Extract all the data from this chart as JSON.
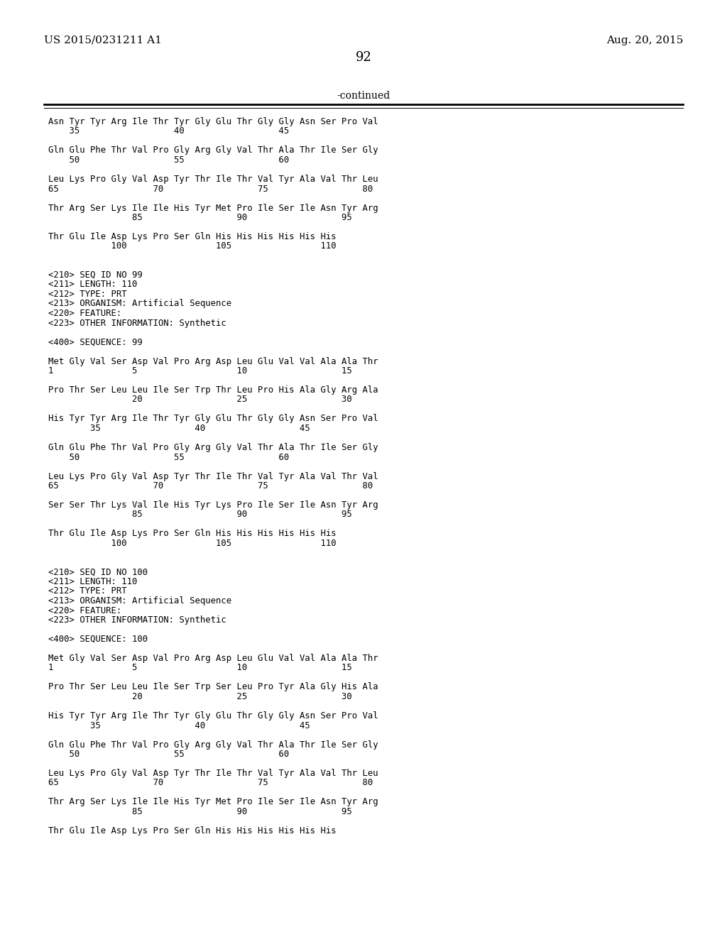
{
  "left_header": "US 2015/0231211 A1",
  "right_header": "Aug. 20, 2015",
  "page_number": "92",
  "continued": "-continued",
  "background_color": "#ffffff",
  "text_color": "#000000",
  "content": [
    {
      "text": "Asn Tyr Tyr Arg Ile Thr Tyr Gly Glu Thr Gly Gly Asn Ser Pro Val"
    },
    {
      "text": "    35                  40                  45"
    },
    {
      "text": ""
    },
    {
      "text": "Gln Glu Phe Thr Val Pro Gly Arg Gly Val Thr Ala Thr Ile Ser Gly"
    },
    {
      "text": "    50                  55                  60"
    },
    {
      "text": ""
    },
    {
      "text": "Leu Lys Pro Gly Val Asp Tyr Thr Ile Thr Val Tyr Ala Val Thr Leu"
    },
    {
      "text": "65                  70                  75                  80"
    },
    {
      "text": ""
    },
    {
      "text": "Thr Arg Ser Lys Ile Ile His Tyr Met Pro Ile Ser Ile Asn Tyr Arg"
    },
    {
      "text": "                85                  90                  95"
    },
    {
      "text": ""
    },
    {
      "text": "Thr Glu Ile Asp Lys Pro Ser Gln His His His His His His"
    },
    {
      "text": "            100                 105                 110"
    },
    {
      "text": ""
    },
    {
      "text": ""
    },
    {
      "text": "<210> SEQ ID NO 99"
    },
    {
      "text": "<211> LENGTH: 110"
    },
    {
      "text": "<212> TYPE: PRT"
    },
    {
      "text": "<213> ORGANISM: Artificial Sequence"
    },
    {
      "text": "<220> FEATURE:"
    },
    {
      "text": "<223> OTHER INFORMATION: Synthetic"
    },
    {
      "text": ""
    },
    {
      "text": "<400> SEQUENCE: 99"
    },
    {
      "text": ""
    },
    {
      "text": "Met Gly Val Ser Asp Val Pro Arg Asp Leu Glu Val Val Ala Ala Thr"
    },
    {
      "text": "1               5                   10                  15"
    },
    {
      "text": ""
    },
    {
      "text": "Pro Thr Ser Leu Leu Ile Ser Trp Thr Leu Pro His Ala Gly Arg Ala"
    },
    {
      "text": "                20                  25                  30"
    },
    {
      "text": ""
    },
    {
      "text": "His Tyr Tyr Arg Ile Thr Tyr Gly Glu Thr Gly Gly Asn Ser Pro Val"
    },
    {
      "text": "        35                  40                  45"
    },
    {
      "text": ""
    },
    {
      "text": "Gln Glu Phe Thr Val Pro Gly Arg Gly Val Thr Ala Thr Ile Ser Gly"
    },
    {
      "text": "    50                  55                  60"
    },
    {
      "text": ""
    },
    {
      "text": "Leu Lys Pro Gly Val Asp Tyr Thr Ile Thr Val Tyr Ala Val Thr Val"
    },
    {
      "text": "65                  70                  75                  80"
    },
    {
      "text": ""
    },
    {
      "text": "Ser Ser Thr Lys Val Ile His Tyr Lys Pro Ile Ser Ile Asn Tyr Arg"
    },
    {
      "text": "                85                  90                  95"
    },
    {
      "text": ""
    },
    {
      "text": "Thr Glu Ile Asp Lys Pro Ser Gln His His His His His His"
    },
    {
      "text": "            100                 105                 110"
    },
    {
      "text": ""
    },
    {
      "text": ""
    },
    {
      "text": "<210> SEQ ID NO 100"
    },
    {
      "text": "<211> LENGTH: 110"
    },
    {
      "text": "<212> TYPE: PRT"
    },
    {
      "text": "<213> ORGANISM: Artificial Sequence"
    },
    {
      "text": "<220> FEATURE:"
    },
    {
      "text": "<223> OTHER INFORMATION: Synthetic"
    },
    {
      "text": ""
    },
    {
      "text": "<400> SEQUENCE: 100"
    },
    {
      "text": ""
    },
    {
      "text": "Met Gly Val Ser Asp Val Pro Arg Asp Leu Glu Val Val Ala Ala Thr"
    },
    {
      "text": "1               5                   10                  15"
    },
    {
      "text": ""
    },
    {
      "text": "Pro Thr Ser Leu Leu Ile Ser Trp Ser Leu Pro Tyr Ala Gly His Ala"
    },
    {
      "text": "                20                  25                  30"
    },
    {
      "text": ""
    },
    {
      "text": "His Tyr Tyr Arg Ile Thr Tyr Gly Glu Thr Gly Gly Asn Ser Pro Val"
    },
    {
      "text": "        35                  40                  45"
    },
    {
      "text": ""
    },
    {
      "text": "Gln Glu Phe Thr Val Pro Gly Arg Gly Val Thr Ala Thr Ile Ser Gly"
    },
    {
      "text": "    50                  55                  60"
    },
    {
      "text": ""
    },
    {
      "text": "Leu Lys Pro Gly Val Asp Tyr Thr Ile Thr Val Tyr Ala Val Thr Leu"
    },
    {
      "text": "65                  70                  75                  80"
    },
    {
      "text": ""
    },
    {
      "text": "Thr Arg Ser Lys Ile Ile His Tyr Met Pro Ile Ser Ile Asn Tyr Arg"
    },
    {
      "text": "                85                  90                  95"
    },
    {
      "text": ""
    },
    {
      "text": "Thr Glu Ile Asp Lys Pro Ser Gln His His His His His His"
    }
  ]
}
